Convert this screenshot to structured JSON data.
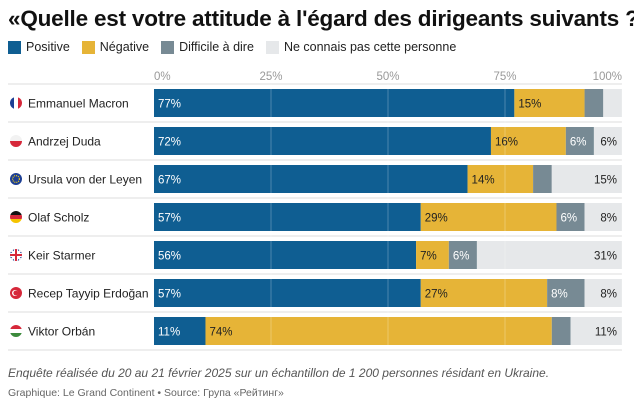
{
  "title": "«Quelle est votre attitude à l'égard des dirigeants suivants ?»",
  "footnote": "Enquête réalisée du 20 au 21 février 2025 sur un échantillon de 1 200 personnes résidant en Ukraine.",
  "credit": "Graphique: Le Grand Continent • Source: Група «Рейтинг»",
  "chart_data": {
    "type": "bar",
    "orientation": "horizontal-stacked-100",
    "xlim": [
      0,
      100
    ],
    "ticks": [
      "0%",
      "25%",
      "50%",
      "75%",
      "100%"
    ],
    "tick_values": [
      0,
      25,
      50,
      75,
      100
    ],
    "categories": [
      "Emmanuel Macron",
      "Andrzej Duda",
      "Ursula von der Leyen",
      "Olaf Scholz",
      "Keir Starmer",
      "Recep Tayyip Erdoğan",
      "Viktor Orbán"
    ],
    "flags": [
      "france-flag-icon",
      "poland-flag-icon",
      "eu-flag-icon",
      "germany-flag-icon",
      "uk-flag-icon",
      "turkey-flag-icon",
      "hungary-flag-icon"
    ],
    "series": [
      {
        "name": "Positive",
        "color": "#0f5e92",
        "label_color": "#ffffff",
        "values": [
          77,
          72,
          67,
          57,
          56,
          57,
          11
        ],
        "labels": [
          "77%",
          "72%",
          "67%",
          "57%",
          "56%",
          "57%",
          "11%"
        ]
      },
      {
        "name": "Négative",
        "color": "#e6b437",
        "label_color": "#222222",
        "values": [
          15,
          16,
          14,
          29,
          7,
          27,
          74
        ],
        "labels": [
          "15%",
          "16%",
          "14%",
          "29%",
          "7%",
          "27%",
          "74%"
        ]
      },
      {
        "name": "Difficile à dire",
        "color": "#778a94",
        "label_color": "#ffffff",
        "values": [
          4,
          6,
          4,
          6,
          6,
          8,
          4
        ],
        "labels": [
          "",
          "6%",
          "",
          "6%",
          "6%",
          "8%",
          ""
        ]
      },
      {
        "name": "Ne connais pas cette personne",
        "color": "#e6e8ea",
        "label_color": "#222222",
        "values": [
          4,
          6,
          15,
          8,
          31,
          8,
          11
        ],
        "labels": [
          "",
          "6%",
          "15%",
          "8%",
          "31%",
          "8%",
          "11%"
        ]
      }
    ]
  }
}
